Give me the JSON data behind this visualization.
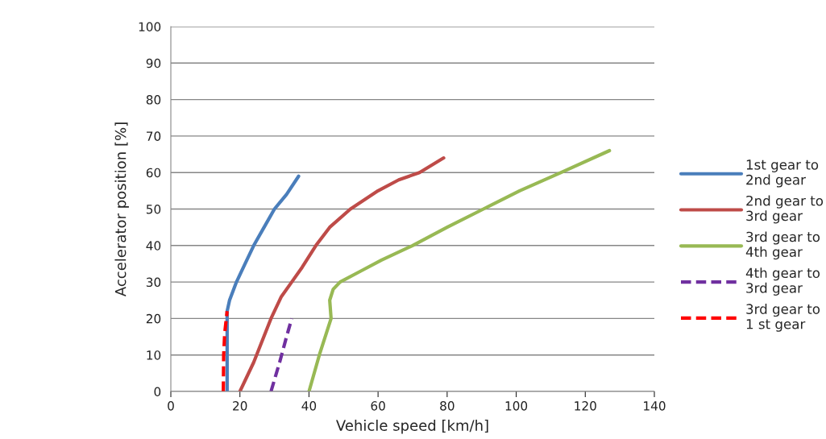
{
  "chart_data": {
    "type": "line",
    "xlabel": "Vehicle speed [km/h]",
    "ylabel": "Accelerator position [%]",
    "xlim": [
      0,
      140
    ],
    "xticks": [
      0,
      20,
      40,
      60,
      80,
      100,
      120,
      140
    ],
    "ylim": [
      0,
      100
    ],
    "yticks": [
      0,
      10,
      20,
      30,
      40,
      50,
      60,
      70,
      80,
      90,
      100
    ],
    "grid": "y",
    "legend": "right",
    "marker": "none",
    "series": [
      {
        "name": "1st gear to\n2nd gear",
        "color": "#4a7ebb",
        "line_style": "solid",
        "x": [
          16.3,
          16.3,
          17,
          19,
          21.5,
          24,
          27,
          30,
          33.5,
          37
        ],
        "values": [
          0,
          22,
          25,
          30,
          35,
          40,
          45,
          50,
          54,
          59
        ]
      },
      {
        "name": "2nd gear to\n3rd gear",
        "color": "#be4b48",
        "line_style": "solid",
        "x": [
          20,
          24,
          29,
          32,
          35,
          38,
          42,
          46,
          52,
          60,
          66,
          72,
          79
        ],
        "values": [
          0,
          8,
          20,
          26,
          30,
          34,
          40,
          45,
          50,
          55,
          58,
          60,
          64
        ]
      },
      {
        "name": "3rd gear to\n4th gear",
        "color": "#98b954",
        "line_style": "solid",
        "x": [
          40,
          43,
          46.4,
          46,
          47,
          49,
          55,
          61,
          70,
          80,
          90.5,
          101,
          113,
          127
        ],
        "values": [
          0,
          10,
          20,
          25,
          28,
          30,
          33,
          36,
          40,
          45,
          50,
          55,
          60,
          66
        ]
      },
      {
        "name": "4th gear to\n3rd gear",
        "color": "#7030a0",
        "line_style": "dashed",
        "x": [
          29,
          31.5,
          33.5,
          35
        ],
        "values": [
          0,
          8,
          15,
          20
        ]
      },
      {
        "name": "3rd gear to\n1 st gear",
        "color": "#ff0000",
        "line_style": "dashed",
        "x": [
          15.2,
          15.3,
          15.6,
          16.3
        ],
        "values": [
          0,
          10,
          16,
          22
        ]
      }
    ]
  }
}
